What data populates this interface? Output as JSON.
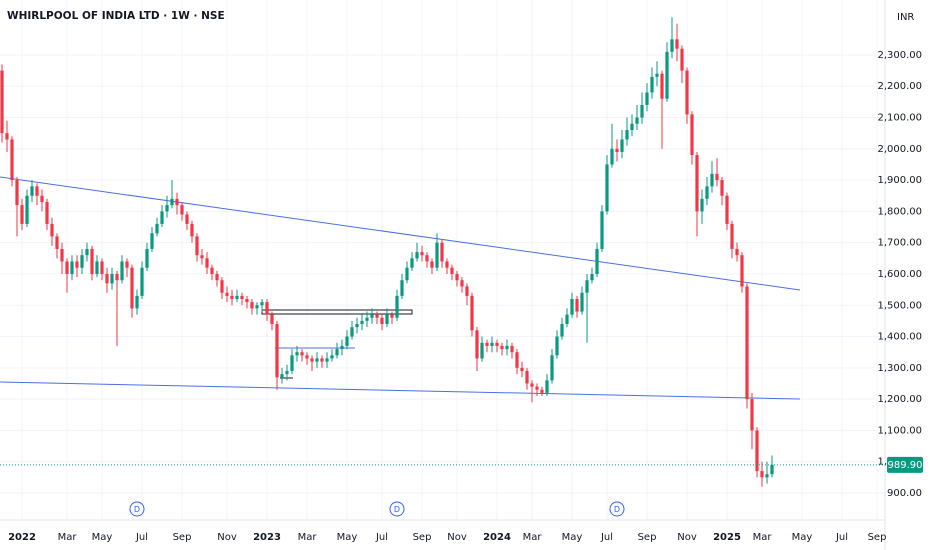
{
  "chart_data": {
    "type": "candlestick",
    "title": "WHIRLPOOL OF INDIA LTD · 1W · NSE",
    "currency": "INR",
    "up_color": "#089981",
    "down_color": "#f23645",
    "grid": true,
    "ylim": [
      813.7,
      2475.6
    ],
    "yticks": [
      {
        "value": 900,
        "label": "900.00"
      },
      {
        "value": 1000,
        "label": "1,000.00"
      },
      {
        "value": 1100,
        "label": "1,100.00"
      },
      {
        "value": 1200,
        "label": "1,200.00"
      },
      {
        "value": 1300,
        "label": "1,300.00"
      },
      {
        "value": 1400,
        "label": "1,400.00"
      },
      {
        "value": 1500,
        "label": "1,500.00"
      },
      {
        "value": 1600,
        "label": "1,600.00"
      },
      {
        "value": 1700,
        "label": "1,700.00"
      },
      {
        "value": 1800,
        "label": "1,800.00"
      },
      {
        "value": 1900,
        "label": "1,900.00"
      },
      {
        "value": 2000,
        "label": "2,000.00"
      },
      {
        "value": 2100,
        "label": "2,100.00"
      },
      {
        "value": 2200,
        "label": "2,200.00"
      },
      {
        "value": 2300,
        "label": "2,300.00"
      }
    ],
    "last_price": {
      "value": 989.9,
      "label": "989.90"
    },
    "events": [
      "D",
      "D",
      "D"
    ],
    "categories": [
      null,
      null,
      null,
      null,
      "2022",
      null,
      null,
      null,
      null,
      null,
      null,
      null,
      null,
      "Mar",
      null,
      null,
      null,
      null,
      null,
      null,
      "May",
      null,
      null,
      null,
      null,
      null,
      null,
      null,
      "Jul",
      null,
      null,
      null,
      null,
      null,
      null,
      null,
      "Sep",
      null,
      null,
      null,
      null,
      null,
      null,
      null,
      null,
      "Nov",
      null,
      null,
      null,
      null,
      null,
      null,
      null,
      "2023",
      null,
      null,
      null,
      null,
      null,
      null,
      null,
      "Mar",
      null,
      null,
      null,
      null,
      null,
      null,
      null,
      "May",
      null,
      null,
      null,
      null,
      null,
      null,
      "Jul",
      null,
      null,
      null,
      null,
      null,
      null,
      null,
      "Sep",
      null,
      null,
      null,
      null,
      null,
      null,
      "Nov",
      null,
      null,
      null,
      null,
      null,
      null,
      null,
      "2024",
      null,
      null,
      null,
      null,
      null,
      null,
      "Mar",
      null,
      null,
      null,
      null,
      null,
      null,
      null,
      "May",
      null,
      null,
      null,
      null,
      null,
      null,
      "Jul",
      null,
      null,
      null,
      null,
      null,
      null,
      null,
      "Sep",
      null,
      null,
      null,
      null,
      null,
      null,
      null,
      "Nov",
      null,
      null,
      null,
      null,
      null,
      null,
      null,
      "2025",
      null,
      null,
      null,
      null,
      null,
      null,
      "Mar",
      null,
      null,
      null,
      null,
      null,
      null,
      null,
      "May",
      null,
      null,
      null,
      null,
      null,
      null,
      null,
      "Jul",
      null,
      null,
      null,
      null,
      null,
      null,
      "Sep",
      null
    ],
    "open": [
      2250,
      2050,
      2030,
      1900,
      1820,
      1760,
      1850,
      1880,
      1850,
      1830,
      1760,
      1720,
      1680,
      1640,
      1600,
      1640,
      1620,
      1660,
      1680,
      1600,
      1640,
      1600,
      1570,
      1600,
      1580,
      1640,
      1620,
      1490,
      1530,
      1620,
      1680,
      1730,
      1760,
      1800,
      1820,
      1840,
      1820,
      1790,
      1760,
      1720,
      1660,
      1650,
      1620,
      1600,
      1580,
      1540,
      1530,
      1520,
      1530,
      1520,
      1510,
      1490,
      1500,
      1510,
      1470,
      1440,
      1270,
      1280,
      1290,
      1340,
      1350,
      1340,
      1330,
      1320,
      1330,
      1320,
      1330,
      1340,
      1360,
      1370,
      1400,
      1430,
      1440,
      1450,
      1460,
      1470,
      1460,
      1440,
      1470,
      1460,
      1530,
      1580,
      1620,
      1650,
      1670,
      1660,
      1640,
      1620,
      1700,
      1640,
      1620,
      1600,
      1580,
      1560,
      1530,
      1420,
      1330,
      1380,
      1370,
      1380,
      1370,
      1360,
      1370,
      1350,
      1300,
      1290,
      1250,
      1240,
      1230,
      1220,
      1260,
      1340,
      1400,
      1440,
      1470,
      1520,
      1480,
      1540,
      1580,
      1600,
      1680,
      1800,
      1950,
      2000,
      1990,
      2030,
      2060,
      2080,
      2100,
      2140,
      2180,
      2230,
      2240,
      2160,
      2310,
      2350,
      2320,
      2250,
      2110,
      1980,
      1800,
      1840,
      1880,
      1920,
      1900,
      1850,
      1760,
      1680,
      1660,
      1560,
      1200,
      1100,
      970,
      950,
      960,
      null,
      null,
      null,
      null,
      null,
      null,
      null,
      null,
      null,
      null,
      null,
      null,
      null,
      null,
      null,
      null,
      null,
      null,
      null,
      null,
      null,
      null
    ],
    "high": [
      2270,
      2090,
      2040,
      1910,
      1840,
      1870,
      1900,
      1890,
      1870,
      1840,
      1780,
      1730,
      1700,
      1650,
      1660,
      1660,
      1680,
      1700,
      1690,
      1660,
      1650,
      1620,
      1620,
      1610,
      1660,
      1650,
      1630,
      1550,
      1640,
      1700,
      1750,
      1780,
      1820,
      1850,
      1900,
      1860,
      1830,
      1800,
      1770,
      1730,
      1680,
      1670,
      1630,
      1610,
      1590,
      1560,
      1550,
      1550,
      1540,
      1530,
      1520,
      1510,
      1520,
      1520,
      1480,
      1450,
      1300,
      1310,
      1360,
      1370,
      1360,
      1350,
      1340,
      1350,
      1340,
      1350,
      1360,
      1380,
      1390,
      1420,
      1450,
      1460,
      1470,
      1480,
      1490,
      1480,
      1470,
      1490,
      1480,
      1550,
      1600,
      1640,
      1670,
      1700,
      1690,
      1670,
      1650,
      1730,
      1710,
      1650,
      1630,
      1610,
      1590,
      1570,
      1540,
      1430,
      1400,
      1390,
      1400,
      1390,
      1380,
      1390,
      1380,
      1360,
      1320,
      1300,
      1260,
      1250,
      1240,
      1280,
      1360,
      1420,
      1460,
      1490,
      1540,
      1530,
      1560,
      1600,
      1620,
      1700,
      1820,
      1980,
      2080,
      2030,
      2060,
      2100,
      2110,
      2140,
      2180,
      2210,
      2260,
      2280,
      2250,
      2340,
      2420,
      2400,
      2330,
      2260,
      2120,
      1990,
      1870,
      1910,
      1960,
      1970,
      1910,
      1860,
      1770,
      1700,
      1670,
      1570,
      1220,
      1110,
      1000,
      1000,
      1020,
      null,
      null,
      null,
      null,
      null,
      null,
      null,
      null,
      null,
      null,
      null,
      null,
      null,
      null,
      null,
      null,
      null,
      null,
      null,
      null,
      null,
      null
    ],
    "low": [
      2020,
      1990,
      1880,
      1720,
      1740,
      1750,
      1830,
      1820,
      1800,
      1740,
      1690,
      1650,
      1600,
      1540,
      1580,
      1590,
      1600,
      1640,
      1580,
      1590,
      1580,
      1540,
      1550,
      1370,
      1570,
      1590,
      1460,
      1470,
      1520,
      1610,
      1670,
      1720,
      1750,
      1780,
      1810,
      1790,
      1770,
      1740,
      1700,
      1640,
      1630,
      1600,
      1580,
      1560,
      1520,
      1510,
      1500,
      1510,
      1500,
      1490,
      1470,
      1470,
      1480,
      1450,
      1420,
      1230,
      1250,
      1260,
      1280,
      1320,
      1320,
      1310,
      1290,
      1300,
      1300,
      1300,
      1320,
      1330,
      1340,
      1360,
      1390,
      1410,
      1420,
      1430,
      1440,
      1440,
      1420,
      1430,
      1440,
      1450,
      1520,
      1570,
      1610,
      1640,
      1640,
      1620,
      1600,
      1610,
      1620,
      1600,
      1580,
      1560,
      1540,
      1500,
      1400,
      1290,
      1320,
      1350,
      1350,
      1350,
      1340,
      1340,
      1330,
      1280,
      1270,
      1230,
      1190,
      1210,
      1210,
      1210,
      1250,
      1330,
      1390,
      1430,
      1460,
      1460,
      1470,
      1380,
      1570,
      1590,
      1670,
      1790,
      1940,
      1960,
      1970,
      2010,
      2040,
      2060,
      2080,
      2120,
      2160,
      2200,
      2000,
      2150,
      2290,
      2280,
      2210,
      2080,
      1950,
      1720,
      1760,
      1820,
      1860,
      1880,
      1820,
      1740,
      1650,
      1640,
      1540,
      1170,
      1040,
      950,
      920,
      930,
      950,
      null,
      null,
      null,
      null,
      null,
      null,
      null,
      null,
      null,
      null,
      null,
      null,
      null,
      null,
      null,
      null,
      null,
      null,
      null,
      null,
      null,
      null
    ],
    "close": [
      2050,
      2030,
      1900,
      1820,
      1760,
      1850,
      1880,
      1850,
      1830,
      1760,
      1720,
      1680,
      1640,
      1600,
      1640,
      1620,
      1660,
      1680,
      1600,
      1640,
      1600,
      1570,
      1600,
      1580,
      1640,
      1620,
      1490,
      1530,
      1620,
      1680,
      1730,
      1760,
      1800,
      1820,
      1840,
      1820,
      1790,
      1760,
      1720,
      1660,
      1650,
      1620,
      1600,
      1580,
      1540,
      1530,
      1520,
      1530,
      1520,
      1510,
      1490,
      1500,
      1510,
      1470,
      1440,
      1270,
      1280,
      1290,
      1340,
      1350,
      1340,
      1330,
      1320,
      1330,
      1320,
      1330,
      1340,
      1360,
      1370,
      1400,
      1430,
      1440,
      1450,
      1460,
      1470,
      1460,
      1440,
      1470,
      1460,
      1530,
      1580,
      1620,
      1650,
      1670,
      1660,
      1640,
      1620,
      1700,
      1640,
      1620,
      1600,
      1580,
      1560,
      1530,
      1420,
      1330,
      1380,
      1370,
      1380,
      1370,
      1360,
      1370,
      1350,
      1300,
      1290,
      1250,
      1240,
      1230,
      1220,
      1260,
      1340,
      1400,
      1440,
      1470,
      1520,
      1480,
      1540,
      1580,
      1600,
      1680,
      1800,
      1950,
      2000,
      1990,
      2030,
      2060,
      2080,
      2100,
      2140,
      2180,
      2230,
      2240,
      2160,
      2310,
      2350,
      2320,
      2250,
      2110,
      1980,
      1800,
      1840,
      1880,
      1920,
      1900,
      1850,
      1760,
      1680,
      1660,
      1560,
      1200,
      1100,
      970,
      950,
      960,
      989.9,
      null,
      null,
      null,
      null,
      null,
      null,
      null,
      null,
      null,
      null,
      null,
      null,
      null,
      null,
      null,
      null,
      null,
      null,
      null,
      null,
      null,
      null
    ]
  }
}
